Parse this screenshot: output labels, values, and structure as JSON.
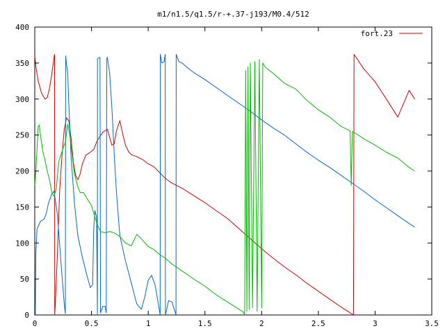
{
  "chart_data": {
    "type": "line",
    "title": "m1/n1.5/q1.5/r-+.37-j193/M0.4/512",
    "xlabel": "",
    "ylabel": "",
    "xlim": [
      0,
      3.5
    ],
    "ylim": [
      0,
      400
    ],
    "x_ticks": [
      "0",
      "0.5",
      "1",
      "1.5",
      "2",
      "2.5",
      "3",
      "3.5"
    ],
    "y_ticks": [
      "0",
      "50",
      "100",
      "150",
      "200",
      "250",
      "300",
      "350",
      "400"
    ],
    "grid": false,
    "legend_position": "top-right",
    "legend": {
      "label": "fort.23",
      "color": "#cc0000"
    },
    "series": [
      {
        "color": "#cc0000",
        "points": [
          [
            0,
            360
          ],
          [
            0.01,
            345
          ],
          [
            0.03,
            325
          ],
          [
            0.06,
            308
          ],
          [
            0.09,
            300
          ],
          [
            0.11,
            302
          ],
          [
            0.13,
            315
          ],
          [
            0.15,
            335
          ],
          [
            0.17,
            358
          ],
          [
            0.175,
            362
          ],
          [
            0.176,
            0
          ],
          [
            0.18,
            12
          ],
          [
            0.2,
            85
          ],
          [
            0.22,
            175
          ],
          [
            0.24,
            222
          ],
          [
            0.26,
            258
          ],
          [
            0.28,
            274
          ],
          [
            0.3,
            270
          ],
          [
            0.32,
            246
          ],
          [
            0.34,
            212
          ],
          [
            0.36,
            194
          ],
          [
            0.38,
            188
          ],
          [
            0.4,
            196
          ],
          [
            0.42,
            210
          ],
          [
            0.45,
            222
          ],
          [
            0.48,
            225
          ],
          [
            0.52,
            230
          ],
          [
            0.55,
            242
          ],
          [
            0.6,
            254
          ],
          [
            0.64,
            258
          ],
          [
            0.68,
            236
          ],
          [
            0.7,
            238
          ],
          [
            0.72,
            256
          ],
          [
            0.75,
            270
          ],
          [
            0.78,
            248
          ],
          [
            0.8,
            236
          ],
          [
            0.83,
            226
          ],
          [
            0.86,
            222
          ],
          [
            0.9,
            220
          ],
          [
            0.95,
            216
          ],
          [
            1.0,
            210
          ],
          [
            1.05,
            206
          ],
          [
            1.1,
            198
          ],
          [
            1.15,
            190
          ],
          [
            1.2,
            184
          ],
          [
            1.3,
            176
          ],
          [
            1.4,
            166
          ],
          [
            1.5,
            156
          ],
          [
            1.6,
            145
          ],
          [
            1.7,
            134
          ],
          [
            1.8,
            120
          ],
          [
            1.9,
            106
          ],
          [
            2.0,
            92
          ],
          [
            2.1,
            79
          ],
          [
            2.2,
            67
          ],
          [
            2.3,
            56
          ],
          [
            2.4,
            44
          ],
          [
            2.5,
            33
          ],
          [
            2.6,
            22
          ],
          [
            2.7,
            11
          ],
          [
            2.81,
            0
          ],
          [
            2.815,
            362
          ],
          [
            2.9,
            342
          ],
          [
            3.0,
            324
          ],
          [
            3.1,
            300
          ],
          [
            3.2,
            275
          ],
          [
            3.3,
            312
          ],
          [
            3.35,
            300
          ]
        ]
      },
      {
        "color": "#0066cc",
        "points": [
          [
            0,
            0
          ],
          [
            0.005,
            0
          ],
          [
            0.01,
            85
          ],
          [
            0.02,
            120
          ],
          [
            0.05,
            130
          ],
          [
            0.08,
            133
          ],
          [
            0.1,
            140
          ],
          [
            0.12,
            155
          ],
          [
            0.15,
            168
          ],
          [
            0.17,
            172
          ],
          [
            0.2,
            140
          ],
          [
            0.23,
            75
          ],
          [
            0.26,
            15
          ],
          [
            0.27,
            2
          ],
          [
            0.272,
            360
          ],
          [
            0.28,
            348
          ],
          [
            0.29,
            338
          ],
          [
            0.3,
            295
          ],
          [
            0.32,
            220
          ],
          [
            0.35,
            155
          ],
          [
            0.38,
            110
          ],
          [
            0.42,
            80
          ],
          [
            0.46,
            55
          ],
          [
            0.49,
            38
          ],
          [
            0.51,
            42
          ],
          [
            0.52,
            120
          ],
          [
            0.53,
            145
          ],
          [
            0.545,
            136
          ],
          [
            0.552,
            0
          ],
          [
            0.553,
            356
          ],
          [
            0.575,
            358
          ],
          [
            0.58,
            3
          ],
          [
            0.6,
            12
          ],
          [
            0.62,
            12
          ],
          [
            0.63,
            3
          ],
          [
            0.635,
            356
          ],
          [
            0.64,
            358
          ],
          [
            0.66,
            336
          ],
          [
            0.68,
            288
          ],
          [
            0.7,
            225
          ],
          [
            0.72,
            170
          ],
          [
            0.75,
            110
          ],
          [
            0.8,
            75
          ],
          [
            0.85,
            45
          ],
          [
            0.9,
            15
          ],
          [
            0.94,
            8
          ],
          [
            0.97,
            25
          ],
          [
            1.0,
            48
          ],
          [
            1.03,
            55
          ],
          [
            1.06,
            42
          ],
          [
            1.09,
            15
          ],
          [
            1.105,
            0
          ],
          [
            1.107,
            362
          ],
          [
            1.12,
            350
          ],
          [
            1.14,
            352
          ],
          [
            1.15,
            362
          ],
          [
            1.152,
            0
          ],
          [
            1.18,
            20
          ],
          [
            1.21,
            18
          ],
          [
            1.245,
            0
          ],
          [
            1.247,
            362
          ],
          [
            1.27,
            352
          ],
          [
            1.3,
            350
          ],
          [
            1.35,
            343
          ],
          [
            1.4,
            337
          ],
          [
            1.5,
            327
          ],
          [
            1.6,
            316
          ],
          [
            1.7,
            305
          ],
          [
            1.8,
            294
          ],
          [
            1.9,
            283
          ],
          [
            2.0,
            271
          ],
          [
            2.1,
            260
          ],
          [
            2.2,
            250
          ],
          [
            2.3,
            238
          ],
          [
            2.4,
            226
          ],
          [
            2.5,
            215
          ],
          [
            2.6,
            205
          ],
          [
            2.7,
            194
          ],
          [
            2.8,
            183
          ],
          [
            2.9,
            172
          ],
          [
            3.0,
            160
          ],
          [
            3.1,
            149
          ],
          [
            3.2,
            138
          ],
          [
            3.3,
            127
          ],
          [
            3.35,
            122
          ]
        ]
      },
      {
        "color": "#00bb00",
        "points": [
          [
            0,
            180
          ],
          [
            0.01,
            200
          ],
          [
            0.02,
            232
          ],
          [
            0.03,
            262
          ],
          [
            0.04,
            264
          ],
          [
            0.05,
            250
          ],
          [
            0.07,
            228
          ],
          [
            0.09,
            215
          ],
          [
            0.11,
            200
          ],
          [
            0.13,
            188
          ],
          [
            0.15,
            170
          ],
          [
            0.17,
            165
          ],
          [
            0.19,
            175
          ],
          [
            0.21,
            212
          ],
          [
            0.23,
            222
          ],
          [
            0.25,
            232
          ],
          [
            0.27,
            240
          ],
          [
            0.29,
            265
          ],
          [
            0.3,
            258
          ],
          [
            0.31,
            248
          ],
          [
            0.33,
            222
          ],
          [
            0.35,
            196
          ],
          [
            0.38,
            178
          ],
          [
            0.4,
            170
          ],
          [
            0.43,
            170
          ],
          [
            0.46,
            162
          ],
          [
            0.5,
            152
          ],
          [
            0.53,
            136
          ],
          [
            0.55,
            126
          ],
          [
            0.58,
            116
          ],
          [
            0.62,
            114
          ],
          [
            0.66,
            116
          ],
          [
            0.7,
            114
          ],
          [
            0.75,
            109
          ],
          [
            0.8,
            100
          ],
          [
            0.85,
            96
          ],
          [
            0.9,
            112
          ],
          [
            0.95,
            104
          ],
          [
            1.0,
            95
          ],
          [
            1.05,
            91
          ],
          [
            1.1,
            84
          ],
          [
            1.15,
            79
          ],
          [
            1.2,
            72
          ],
          [
            1.3,
            61
          ],
          [
            1.4,
            50
          ],
          [
            1.5,
            40
          ],
          [
            1.6,
            28
          ],
          [
            1.7,
            18
          ],
          [
            1.8,
            8
          ],
          [
            1.84,
            4
          ],
          [
            1.85,
            0
          ],
          [
            1.86,
            340
          ],
          [
            1.87,
            5
          ],
          [
            1.88,
            345
          ],
          [
            1.89,
            8
          ],
          [
            1.9,
            350
          ],
          [
            1.92,
            10
          ],
          [
            1.94,
            352
          ],
          [
            1.96,
            5
          ],
          [
            1.98,
            355
          ],
          [
            2.0,
            10
          ],
          [
            2.01,
            350
          ],
          [
            2.03,
            345
          ],
          [
            2.05,
            342
          ],
          [
            2.1,
            336
          ],
          [
            2.2,
            322
          ],
          [
            2.3,
            314
          ],
          [
            2.4,
            298
          ],
          [
            2.5,
            285
          ],
          [
            2.6,
            275
          ],
          [
            2.7,
            262
          ],
          [
            2.78,
            256
          ],
          [
            2.79,
            180
          ],
          [
            2.8,
            255
          ],
          [
            2.9,
            245
          ],
          [
            3.0,
            236
          ],
          [
            3.1,
            226
          ],
          [
            3.2,
            218
          ],
          [
            3.3,
            205
          ],
          [
            3.35,
            200
          ]
        ]
      }
    ]
  }
}
